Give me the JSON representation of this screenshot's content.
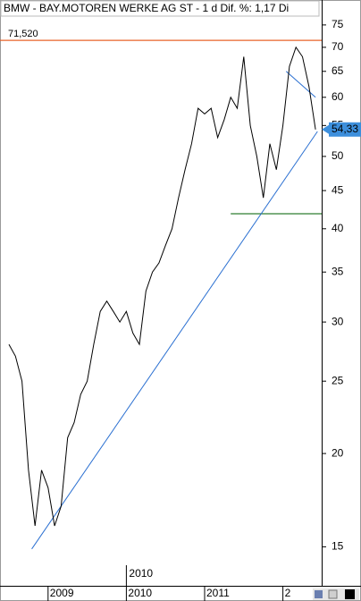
{
  "chart_data": {
    "type": "line",
    "title": "BMW - BAY.MOTOREN WERKE AG ST - 1 d  Dif. %: 1,17  Di",
    "log_scale": true,
    "grid": false,
    "ylim": [
      13.3,
      77.5
    ],
    "yticks": [
      15,
      20,
      25,
      30,
      35,
      40,
      45,
      50,
      55,
      60,
      65,
      70,
      75
    ],
    "categories": [
      null,
      null,
      null,
      null,
      null,
      null,
      "2009",
      null,
      null,
      null,
      null,
      null,
      null,
      null,
      null,
      null,
      null,
      null,
      "2010",
      null,
      null,
      null,
      null,
      null,
      null,
      null,
      null,
      null,
      null,
      null,
      "2011",
      null,
      null,
      null,
      null,
      null,
      null,
      null,
      null,
      null,
      null,
      null,
      "2",
      null,
      null,
      null,
      null,
      null
    ],
    "series": [
      {
        "color": "#000000",
        "values": [
          28,
          27,
          25,
          19,
          16,
          19,
          18,
          16,
          17,
          21,
          22,
          24,
          25,
          28,
          31,
          32,
          31,
          30,
          31,
          29,
          28,
          33,
          35,
          36,
          38,
          40,
          44,
          48,
          52,
          58,
          57,
          58,
          53,
          56,
          60,
          58,
          68,
          55,
          50,
          44,
          52,
          48,
          55,
          66,
          70,
          68,
          62,
          54.33
        ]
      }
    ],
    "last_label": "54,33",
    "hlines": [
      {
        "value": 71.52,
        "label": "71,520",
        "color": "#e8632a"
      },
      {
        "value": 41.9,
        "color": "#2e7d32",
        "from": 34
      }
    ],
    "trendlines": [
      {
        "from": [
          3.5,
          14.9
        ],
        "to": [
          47.3,
          54
        ],
        "color": "#2a6fd1"
      },
      {
        "from": [
          42.5,
          65
        ],
        "to": [
          47,
          60
        ],
        "color": "#2a6fd1"
      }
    ],
    "annotations": [
      {
        "text": "2010",
        "at": 18
      }
    ]
  }
}
